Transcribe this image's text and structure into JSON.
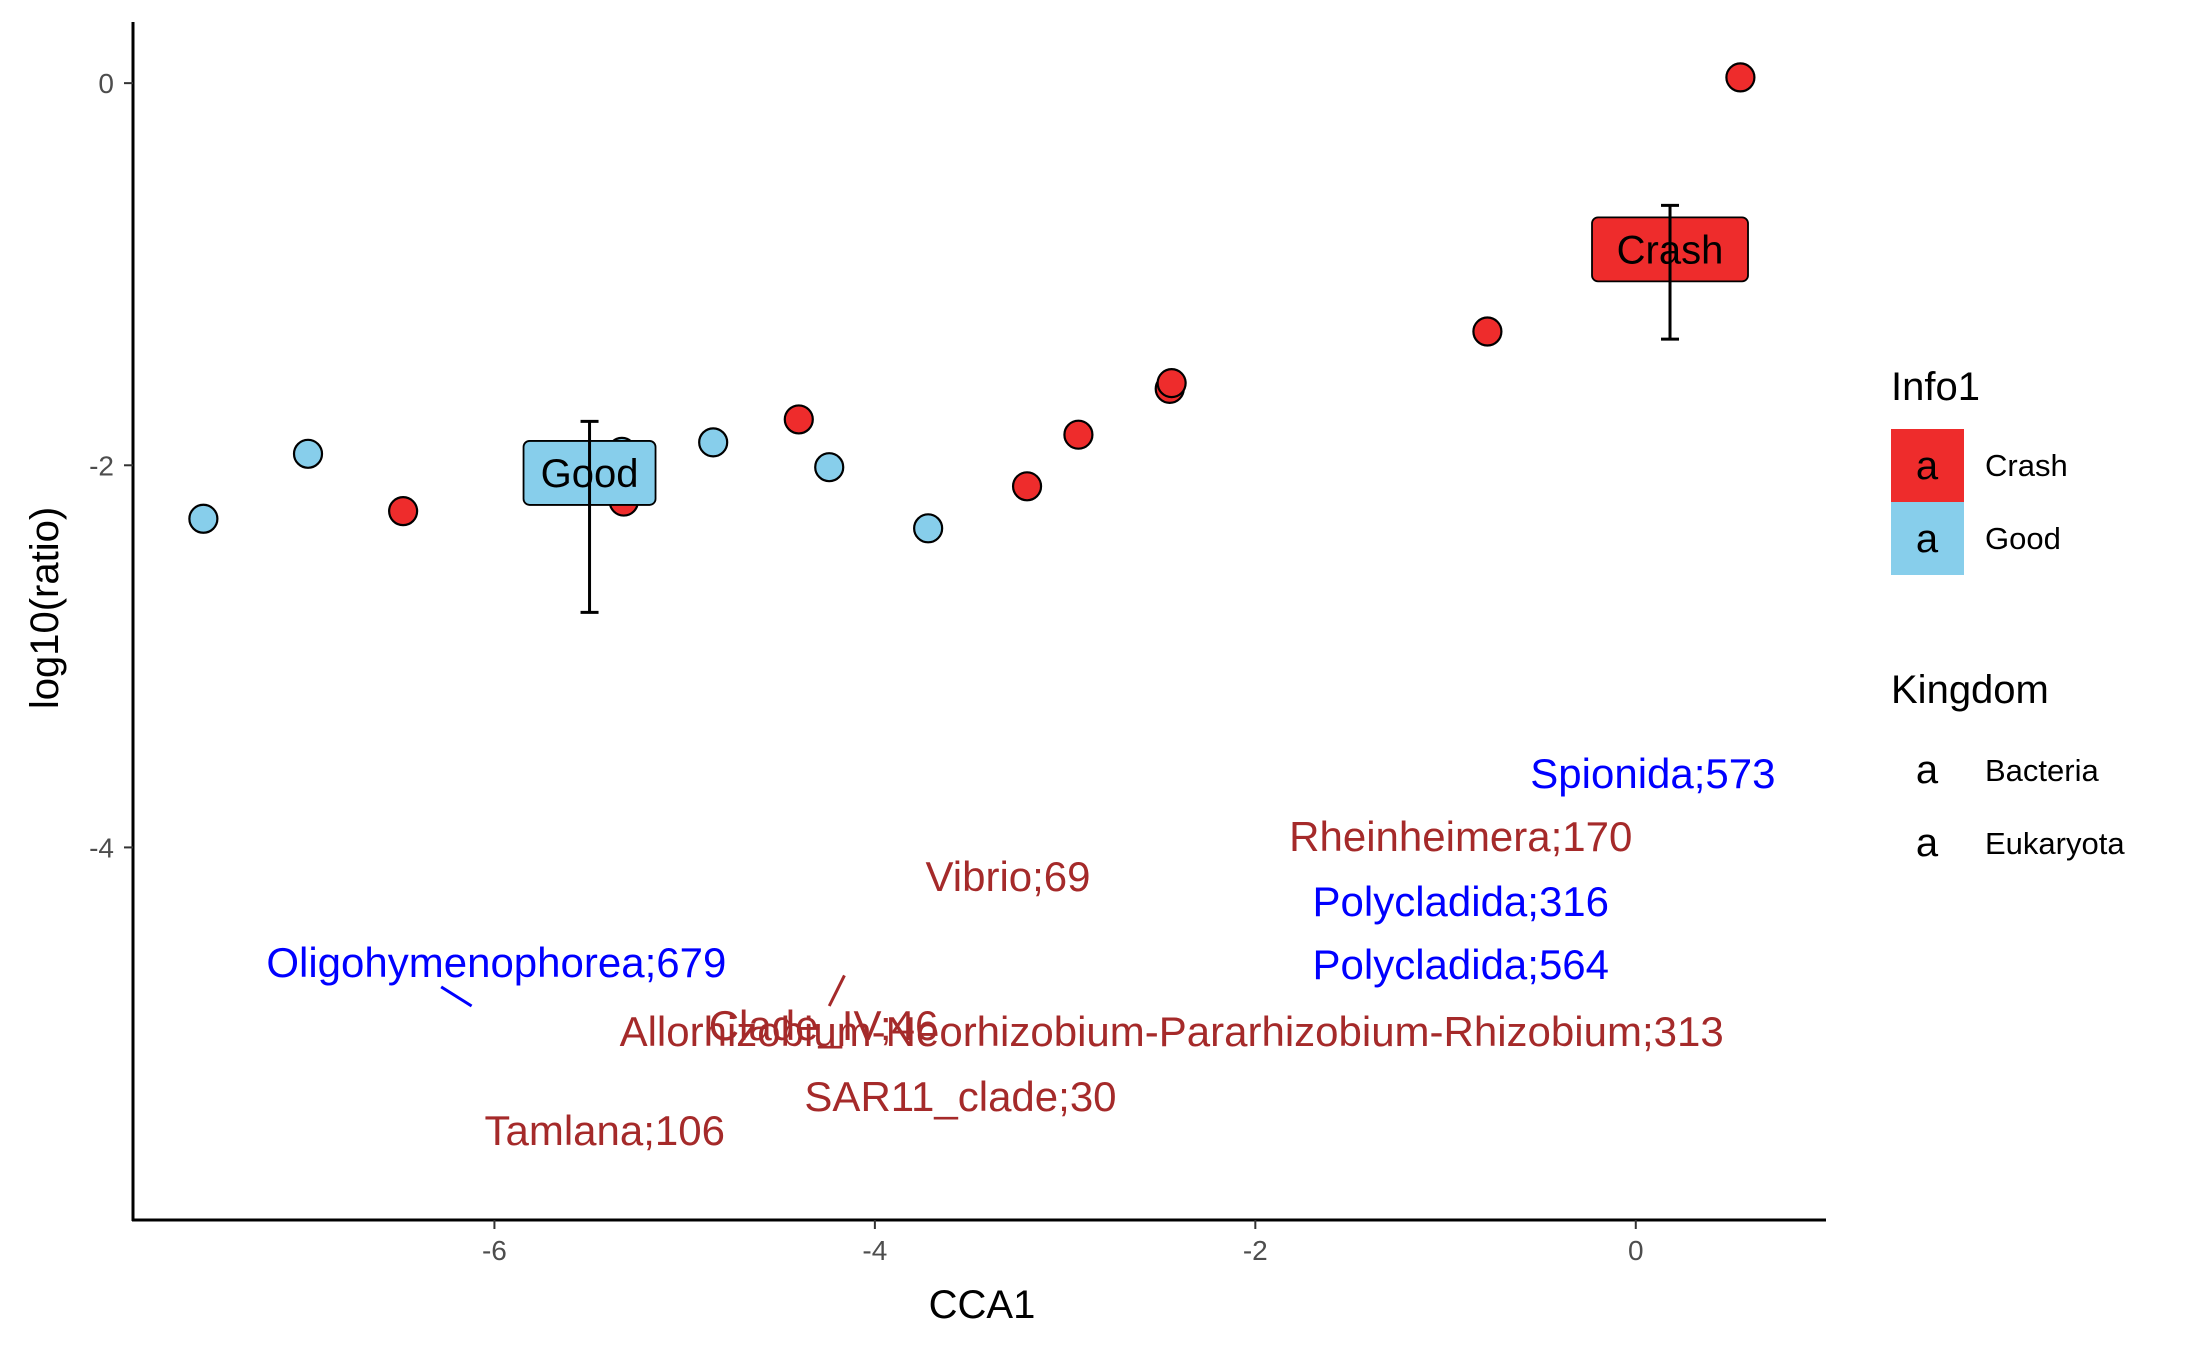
{
  "chart_data": {
    "type": "scatter",
    "xlabel": "CCA1",
    "ylabel": "log10(ratio)",
    "xlim": [
      -7.9,
      1.0
    ],
    "ylim": [
      -5.95,
      0.32
    ],
    "xticks": [
      -6,
      -4,
      -2,
      0
    ],
    "xtick_labels": [
      "-6",
      "-4",
      "-2",
      "0"
    ],
    "yticks": [
      0,
      -2,
      -4
    ],
    "ytick_labels": [
      "0",
      "-2",
      "-4"
    ],
    "colors": {
      "Crash": "#ee2c2c",
      "Good": "#87ceeb",
      "Bacteria": "#a52a2a",
      "Eukaryota": "#0000ff"
    },
    "series": [
      {
        "name": "Crash",
        "points": [
          {
            "x": 0.55,
            "y": 0.03
          },
          {
            "x": -0.78,
            "y": -1.3
          },
          {
            "x": -2.45,
            "y": -1.6
          },
          {
            "x": -2.44,
            "y": -1.57
          },
          {
            "x": -2.93,
            "y": -1.84
          },
          {
            "x": -3.2,
            "y": -2.11
          },
          {
            "x": -4.4,
            "y": -1.76
          },
          {
            "x": -5.32,
            "y": -2.19
          },
          {
            "x": -6.48,
            "y": -2.24
          }
        ]
      },
      {
        "name": "Good",
        "points": [
          {
            "x": -7.53,
            "y": -2.28
          },
          {
            "x": -6.98,
            "y": -1.94
          },
          {
            "x": -4.85,
            "y": -1.88
          },
          {
            "x": -4.24,
            "y": -2.01
          },
          {
            "x": -3.72,
            "y": -2.33
          },
          {
            "x": -5.33,
            "y": -1.93
          }
        ]
      }
    ],
    "group_summaries": [
      {
        "name": "Crash",
        "label": "Crash",
        "x": 0.18,
        "y": -0.87,
        "ymin": -1.34,
        "ymax": -0.64
      },
      {
        "name": "Good",
        "label": "Good",
        "x": -5.5,
        "y": -2.04,
        "ymin": -2.77,
        "ymax": -1.77
      }
    ],
    "taxa_labels": [
      {
        "text": "Spionida;573",
        "kingdom": "Eukaryota",
        "x": 0.09,
        "y": -3.61
      },
      {
        "text": "Rheinheimera;170",
        "kingdom": "Bacteria",
        "x": -0.92,
        "y": -3.94
      },
      {
        "text": "Vibrio;69",
        "kingdom": "Bacteria",
        "x": -3.3,
        "y": -4.15
      },
      {
        "text": "Polycladida;316",
        "kingdom": "Eukaryota",
        "x": -0.92,
        "y": -4.28
      },
      {
        "text": "Polycladida;564",
        "kingdom": "Eukaryota",
        "x": -0.92,
        "y": -4.61
      },
      {
        "text": "Oligohymenophorea;679",
        "kingdom": "Eukaryota",
        "x": -5.99,
        "y": -4.6
      },
      {
        "text": "Clade_IV;46",
        "kingdom": "Bacteria",
        "x": -4.27,
        "y": -4.93
      },
      {
        "text": "Allorhizobium-Neorhizobium-Pararhizobium-Rhizobium;313",
        "kingdom": "Bacteria",
        "x": -2.44,
        "y": -4.96
      },
      {
        "text": "SAR11_clade;30",
        "kingdom": "Bacteria",
        "x": -3.55,
        "y": -5.3
      },
      {
        "text": "Tamlana;106",
        "kingdom": "Bacteria",
        "x": -5.42,
        "y": -5.48
      }
    ],
    "legends": [
      {
        "title": "Info1",
        "key_glyph": "a",
        "entries": [
          {
            "label": "Crash",
            "fill": "#ee2c2c"
          },
          {
            "label": "Good",
            "fill": "#87ceeb"
          }
        ]
      },
      {
        "title": "Kingdom",
        "key_glyph": "a",
        "entries": [
          {
            "label": "Bacteria",
            "text_color": "#a52a2a"
          },
          {
            "label": "Eukaryota",
            "text_color": "#0000ff"
          }
        ]
      }
    ],
    "legend_position": "right",
    "grid": false
  }
}
